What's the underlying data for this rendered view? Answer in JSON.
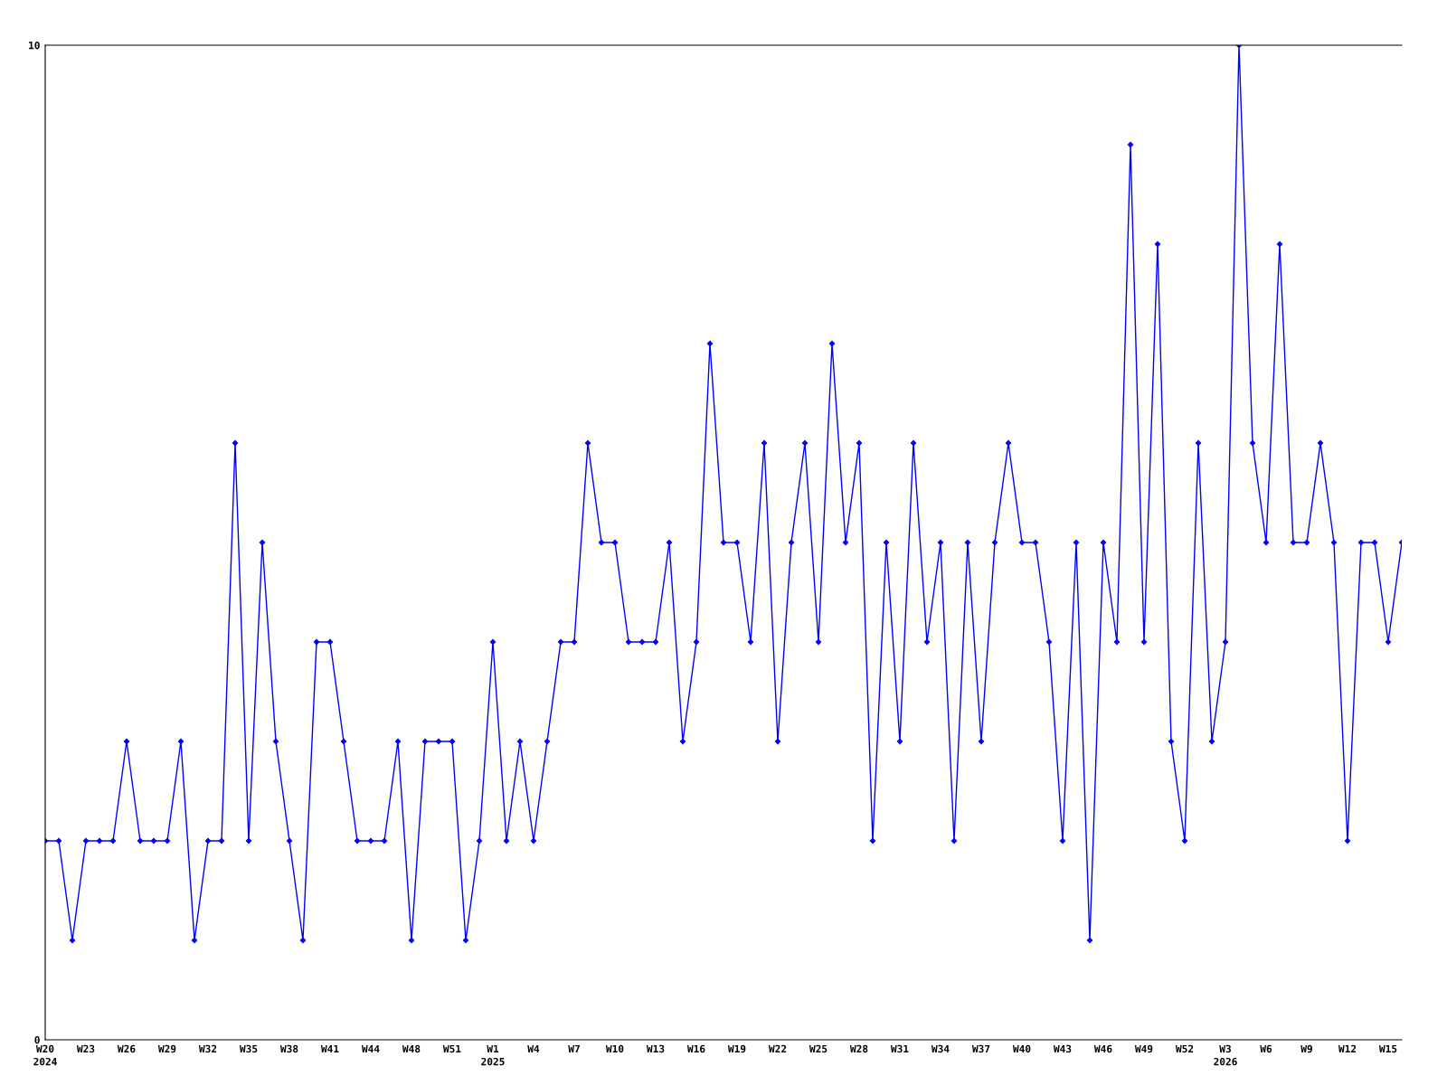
{
  "chart_data": {
    "type": "line",
    "categories": [
      "W20\n2024",
      null,
      null,
      "W23",
      null,
      null,
      "W26",
      null,
      null,
      "W29",
      null,
      null,
      "W32",
      null,
      null,
      "W35",
      null,
      null,
      "W38",
      null,
      null,
      "W41",
      null,
      null,
      "W44",
      null,
      null,
      "W48",
      null,
      null,
      "W51",
      null,
      null,
      "W1\n2025",
      null,
      null,
      "W4",
      null,
      null,
      "W7",
      null,
      null,
      "W10",
      null,
      null,
      "W13",
      null,
      null,
      "W16",
      null,
      null,
      "W19",
      null,
      null,
      "W22",
      null,
      null,
      "W25",
      null,
      null,
      "W28",
      null,
      null,
      "W31",
      null,
      null,
      "W34",
      null,
      null,
      "W37",
      null,
      null,
      "W40",
      null,
      null,
      "W43",
      null,
      null,
      "W46",
      null,
      null,
      "W49",
      null,
      null,
      "W52",
      null,
      null,
      "W3\n2026",
      null,
      null,
      "W6",
      null,
      null,
      "W9",
      null,
      null,
      "W12",
      null,
      null,
      "W15",
      null
    ],
    "series": [
      {
        "color": "#0000ff",
        "values": [
          2,
          2,
          1,
          2,
          2,
          2,
          3,
          2,
          2,
          2,
          3,
          1,
          2,
          2,
          6,
          2,
          5,
          3,
          2,
          1,
          4,
          4,
          3,
          2,
          2,
          2,
          3,
          1,
          3,
          3,
          3,
          1,
          2,
          4,
          2,
          3,
          2,
          3,
          4,
          4,
          6,
          5,
          5,
          4,
          4,
          4,
          5,
          3,
          4,
          7,
          5,
          5,
          4,
          6,
          3,
          5,
          6,
          4,
          7,
          5,
          6,
          2,
          5,
          3,
          6,
          4,
          5,
          2,
          5,
          3,
          5,
          6,
          5,
          5,
          4,
          2,
          5,
          1,
          5,
          4,
          9,
          4,
          8,
          3,
          2,
          6,
          3,
          4,
          10,
          6,
          5,
          8,
          5,
          5,
          6,
          5,
          2,
          5,
          5,
          4,
          5
        ]
      }
    ],
    "ylim": [
      0,
      10
    ],
    "yticks": [
      0,
      10
    ],
    "marker": "diamond",
    "line_style": "solid"
  }
}
